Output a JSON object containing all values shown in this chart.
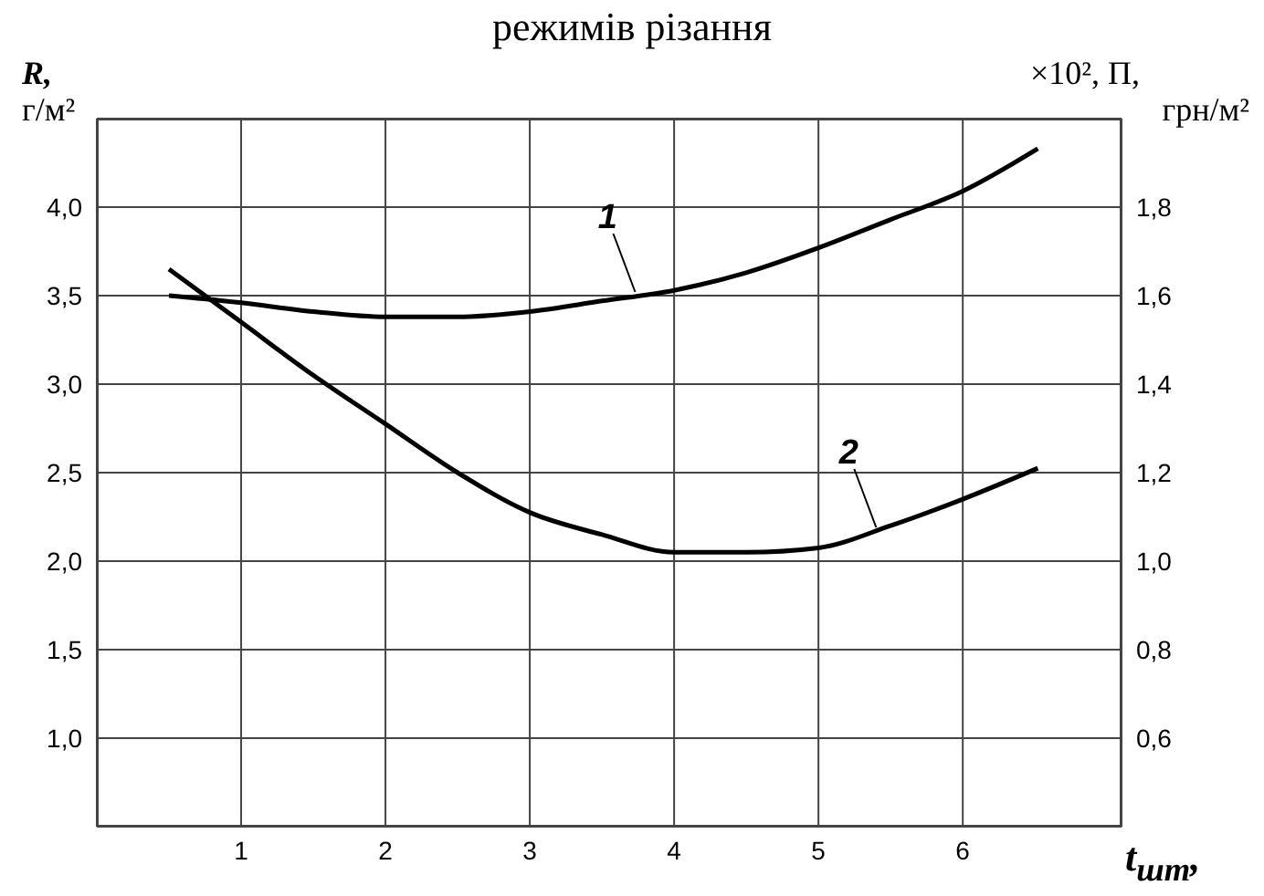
{
  "chart_data": {
    "type": "line",
    "title": "режимів різання",
    "xlabel": "t$_{шт}$,",
    "ylabel": "R, г/м²",
    "y2label": "×10², П, грн/м²",
    "x": [
      0.5,
      1,
      1.5,
      2,
      2.5,
      3,
      3.5,
      4,
      4.5,
      5,
      5.5,
      6,
      6.52
    ],
    "series": [
      {
        "color": "#000000",
        "values": [
          3.5,
          3.46,
          3.41,
          3.38,
          3.38,
          3.41,
          3.47,
          3.53,
          3.63,
          3.77,
          3.93,
          4.09,
          4.33
        ]
      },
      {
        "color": "#000000",
        "axis": "y2",
        "values": [
          1.66,
          1.54,
          1.42,
          1.31,
          1.2,
          1.11,
          1.06,
          1.02,
          1.02,
          1.03,
          1.08,
          1.14,
          1.21
        ]
      }
    ],
    "xlim": [
      0,
      7.1
    ],
    "xticks": [
      1,
      2,
      3,
      4,
      5,
      6
    ],
    "ylim": [
      0.5,
      4.5
    ],
    "yticks": [
      {
        "value": 1,
        "label": "1,0"
      },
      {
        "value": 1.5,
        "label": "1,5"
      },
      {
        "value": 2,
        "label": "2,0"
      },
      {
        "value": 2.5,
        "label": "2,5"
      },
      {
        "value": 3,
        "label": "3,0"
      },
      {
        "value": 3.5,
        "label": "3,5"
      },
      {
        "value": 4,
        "label": "4,0"
      }
    ],
    "y2lim": [
      0.4,
      2.0
    ],
    "y2ticks": [
      {
        "value": 0.6,
        "label": "0,6"
      },
      {
        "value": 0.8,
        "label": "0,8"
      },
      {
        "value": 1,
        "label": "1,0"
      },
      {
        "value": 1.2,
        "label": "1,2"
      },
      {
        "value": 1.4,
        "label": "1,4"
      },
      {
        "value": 1.6,
        "label": "1,6"
      },
      {
        "value": 1.8,
        "label": "1,8"
      }
    ],
    "annotations": [
      {
        "text": "1",
        "x": 3.73,
        "y": 3.5
      },
      {
        "text": "2",
        "x": 5.4,
        "y": 2.17
      }
    ],
    "grid": true,
    "marker": "none",
    "line_style": "solid"
  }
}
